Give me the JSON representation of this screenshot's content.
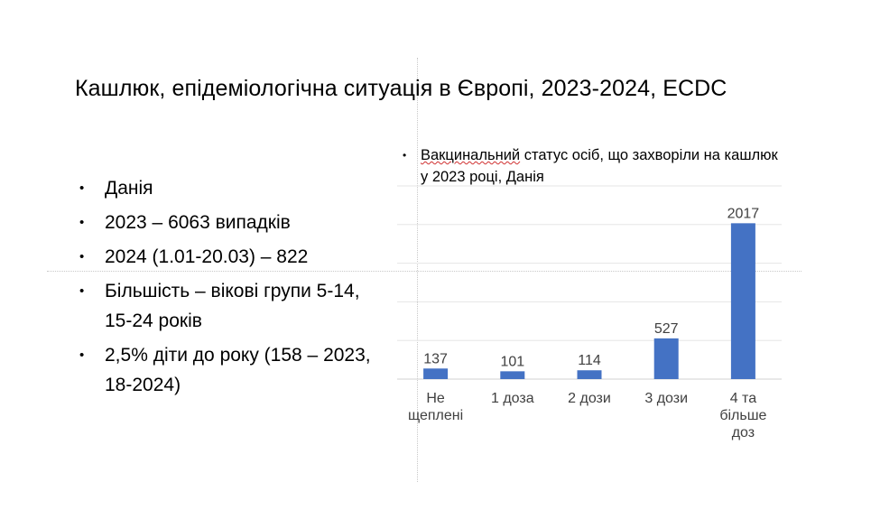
{
  "slide": {
    "title": "Кашлюк, епідеміологічна ситуація в Європі, 2023-2024, ECDC",
    "bullets": [
      "Данія",
      "2023 – 6063 випадків",
      "2024 (1.01-20.03) – 822",
      "Більшість – вікові групи 5-14, 15-24 років",
      "2,5% діти до року (158 – 2023, 18-2024)"
    ],
    "chart_heading_word": "Вакцинальний",
    "chart_heading_rest": " статус осіб, що захворіли на кашлюк у 2023 році, Данія"
  },
  "chart_data": {
    "type": "bar",
    "categories": [
      [
        "Не",
        "щеплені"
      ],
      [
        "1 доза"
      ],
      [
        "2 дози"
      ],
      [
        "3 дози"
      ],
      [
        "4 та",
        "більше",
        "доз"
      ]
    ],
    "values": [
      137,
      101,
      114,
      527,
      2017
    ],
    "data_labels": [
      "137",
      "101",
      "114",
      "527",
      "2017"
    ],
    "ylim": [
      0,
      2500
    ],
    "grid": true,
    "bar_color": "#4472C4",
    "title": "",
    "xlabel": "",
    "ylabel": ""
  }
}
